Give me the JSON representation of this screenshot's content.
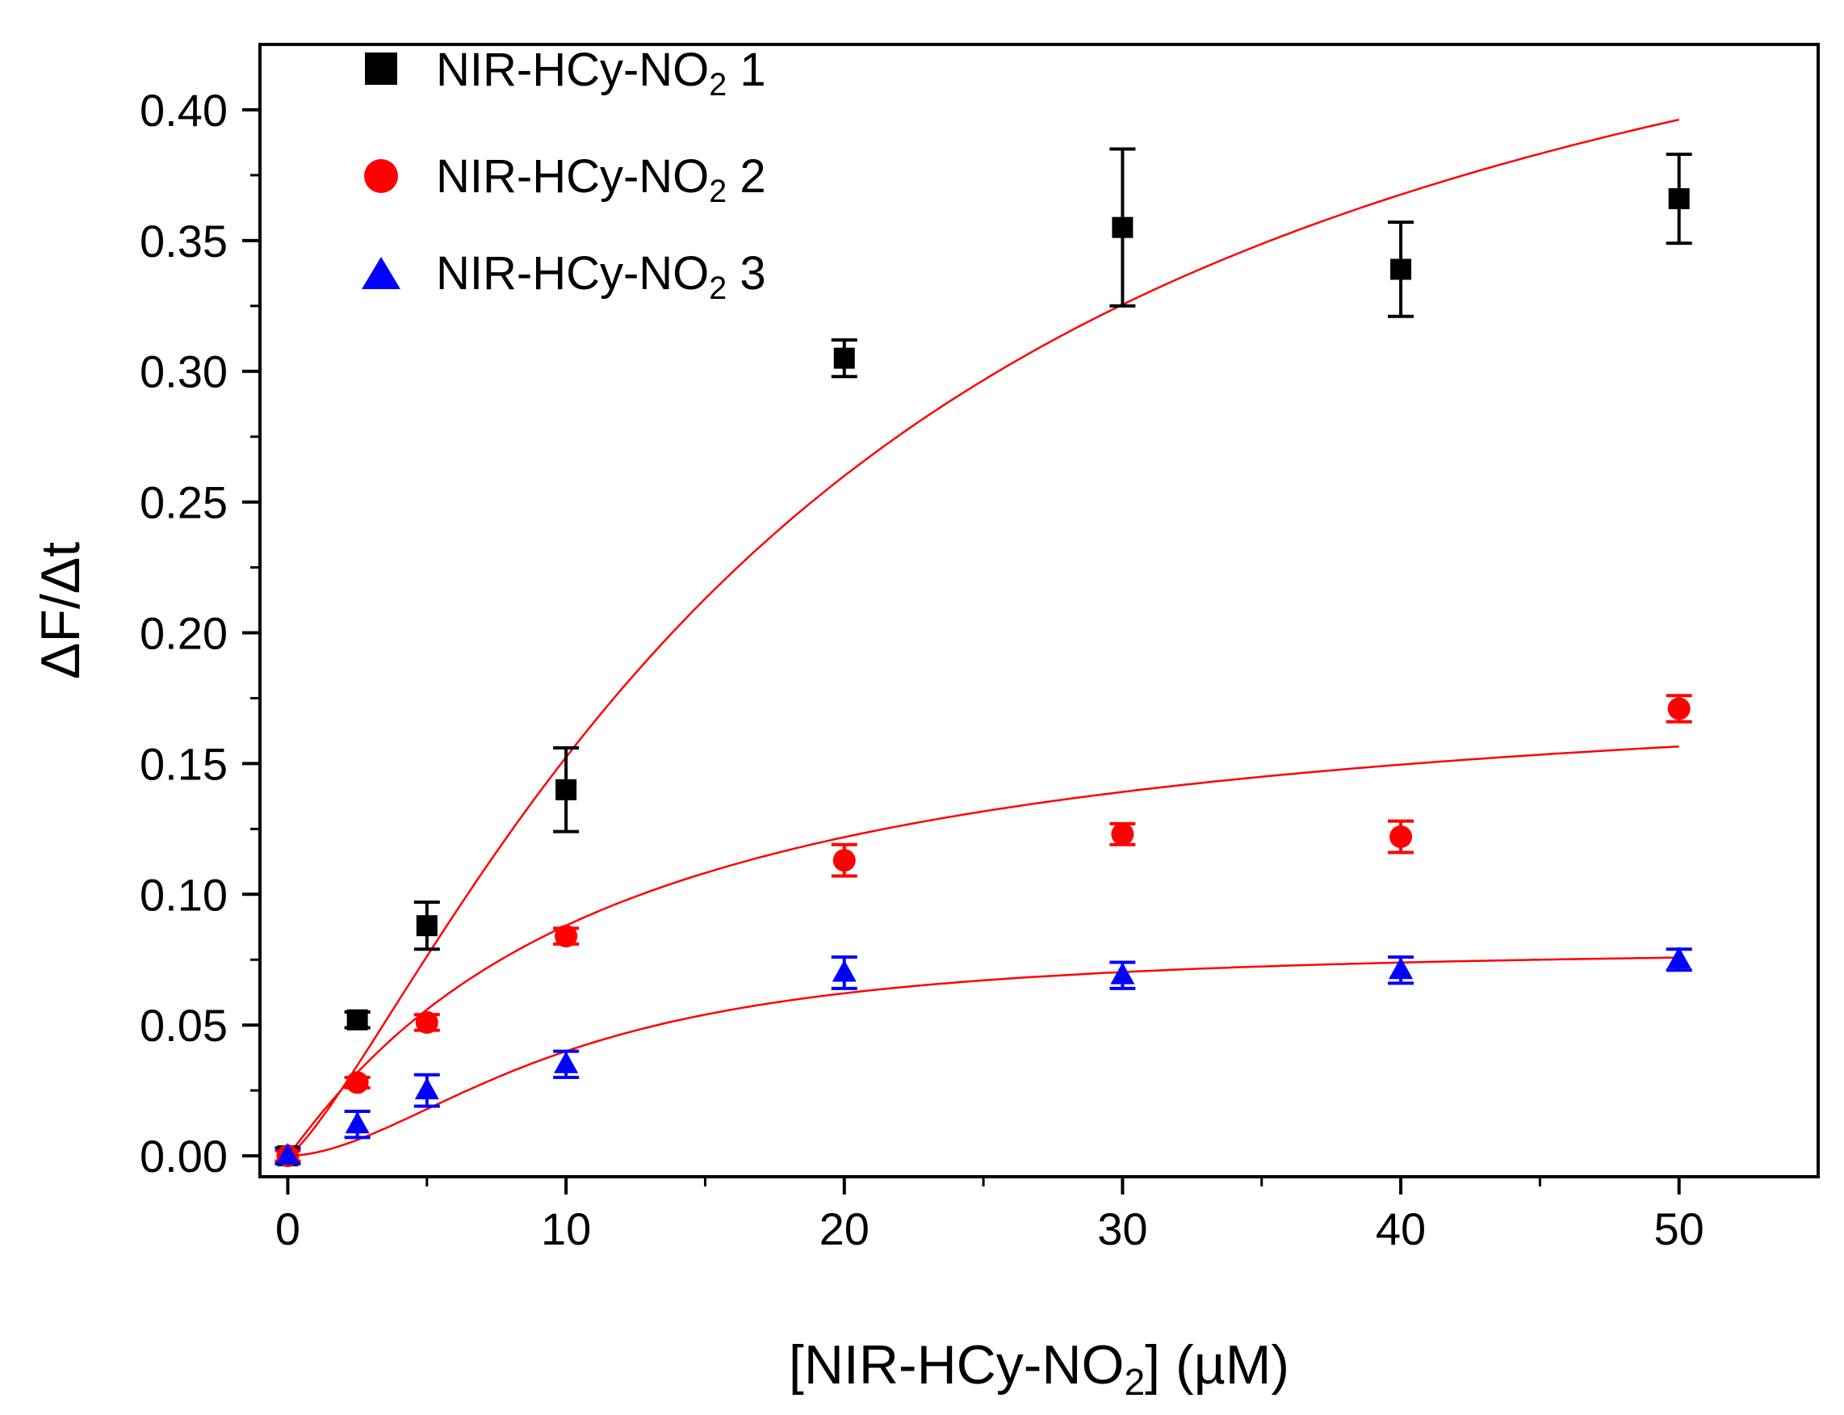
{
  "chart_data": {
    "type": "scatter",
    "xlabel_main": "[NIR-HCy-NO",
    "xlabel_sub": "2",
    "xlabel_rest": "]  (µM)",
    "ylabel": "ΔF/Δt",
    "xlim": [
      -1,
      55
    ],
    "ylim": [
      -0.008,
      0.425
    ],
    "x_ticks": [
      0,
      10,
      20,
      30,
      40,
      50
    ],
    "x_tick_labels": [
      "0",
      "10",
      "20",
      "30",
      "40",
      "50"
    ],
    "y_ticks": [
      0.0,
      0.05,
      0.1,
      0.15,
      0.2,
      0.25,
      0.3,
      0.35,
      0.4
    ],
    "y_tick_labels": [
      "0.00",
      "0.05",
      "0.10",
      "0.15",
      "0.20",
      "0.25",
      "0.30",
      "0.35",
      "0.40"
    ],
    "fit_color": "#ff0000",
    "series": [
      {
        "name_main": "NIR-HCy-NO",
        "name_sub": "2",
        "name_rest": " 1",
        "marker": "square",
        "color": "#000000",
        "x": [
          0,
          2.5,
          5,
          10,
          20,
          30,
          40,
          50
        ],
        "y": [
          0.0,
          0.052,
          0.088,
          0.14,
          0.305,
          0.355,
          0.339,
          0.366
        ],
        "err": [
          0.003,
          0.003,
          0.009,
          0.016,
          0.007,
          0.03,
          0.018,
          0.017
        ],
        "fit": {
          "vmax": 0.52,
          "k": 20,
          "n": 1.27
        }
      },
      {
        "name_main": "NIR-HCy-NO",
        "name_sub": "2",
        "name_rest": " 2",
        "marker": "circle",
        "color": "#ff0000",
        "x": [
          0,
          2.5,
          5,
          10,
          20,
          30,
          40,
          50
        ],
        "y": [
          0.0,
          0.028,
          0.051,
          0.084,
          0.113,
          0.123,
          0.122,
          0.171
        ],
        "err": [
          0.002,
          0.002,
          0.003,
          0.003,
          0.006,
          0.004,
          0.006,
          0.005
        ],
        "fit": {
          "vmax": 0.19,
          "k": 11.5,
          "n": 1.05
        }
      },
      {
        "name_main": "NIR-HCy-NO",
        "name_sub": "2",
        "name_rest": " 3",
        "marker": "triangle",
        "color": "#0000ff",
        "x": [
          0,
          2.5,
          5,
          10,
          20,
          30,
          40,
          50
        ],
        "y": [
          0.0,
          0.012,
          0.025,
          0.035,
          0.07,
          0.069,
          0.071,
          0.075
        ],
        "err": [
          0.003,
          0.005,
          0.006,
          0.005,
          0.006,
          0.005,
          0.005,
          0.004
        ],
        "fit": {
          "vmax": 0.08,
          "k": 10,
          "n": 1.8
        }
      }
    ]
  }
}
